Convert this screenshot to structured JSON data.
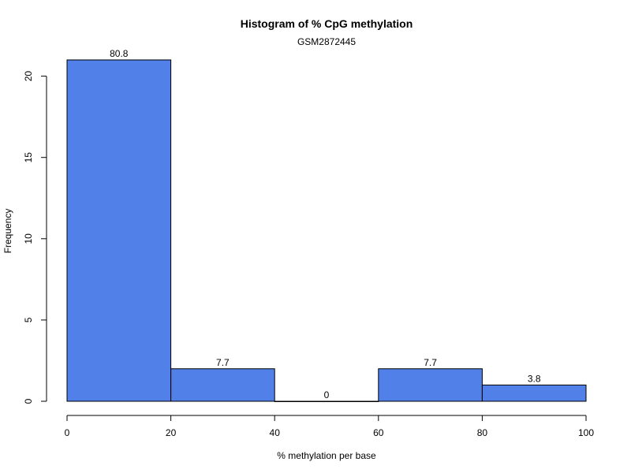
{
  "chart_data": {
    "type": "bar",
    "title": "Histogram of % CpG methylation",
    "subtitle": "GSM2872445",
    "xlabel": "% methylation per base",
    "ylabel": "Frequency",
    "bins": [
      {
        "from": 0,
        "to": 20,
        "count": 21,
        "label": "80.8"
      },
      {
        "from": 20,
        "to": 40,
        "count": 2,
        "label": "7.7"
      },
      {
        "from": 40,
        "to": 60,
        "count": 0,
        "label": "0"
      },
      {
        "from": 60,
        "to": 80,
        "count": 2,
        "label": "7.7"
      },
      {
        "from": 80,
        "to": 100,
        "count": 1,
        "label": "3.8"
      }
    ],
    "xlim": [
      0,
      100
    ],
    "ylim": [
      0,
      21
    ],
    "xticks": [
      "0",
      "20",
      "40",
      "60",
      "80",
      "100"
    ],
    "yticks": [
      "0",
      "5",
      "10",
      "15",
      "20"
    ],
    "bar_color": "#5080e8",
    "grid": false
  }
}
